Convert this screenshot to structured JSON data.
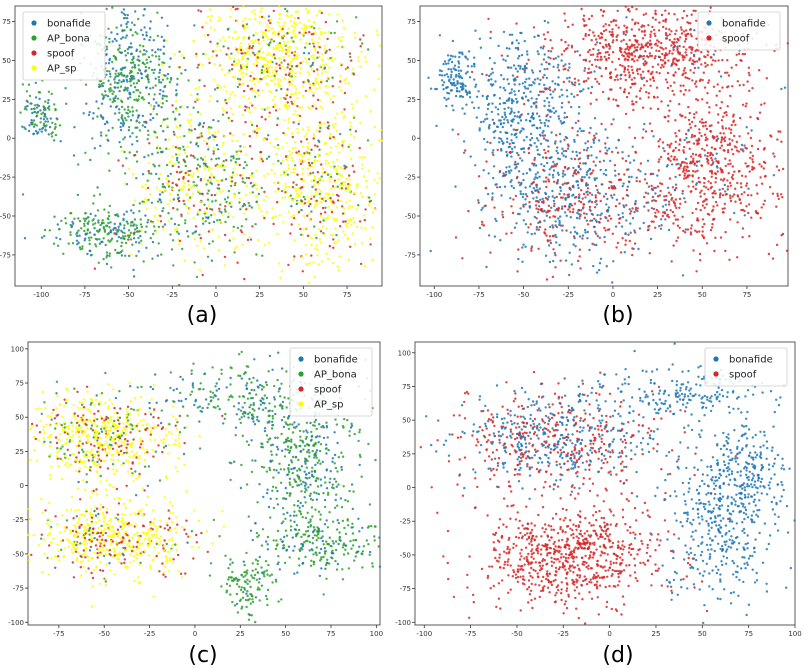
{
  "chart_data": [
    {
      "panel": "a",
      "caption": "(a)",
      "type": "scatter",
      "xlim": [
        -115,
        95
      ],
      "ylim": [
        -95,
        85
      ],
      "xticks": [
        -100,
        -75,
        -50,
        -25,
        0,
        25,
        50,
        75
      ],
      "yticks": [
        -75,
        -50,
        -25,
        0,
        25,
        50,
        75
      ],
      "legend_position": "top-left",
      "series": [
        {
          "name": "bonafide",
          "color": "#1f77b4"
        },
        {
          "name": "AP_bona",
          "color": "#2ca02c"
        },
        {
          "name": "spoof",
          "color": "#d62728"
        },
        {
          "name": "AP_sp",
          "color": "#ffff00"
        }
      ],
      "clusters": [
        {
          "mix": [
            0.45,
            0.55,
            0,
            0
          ],
          "cx": -50,
          "cy": 40,
          "sx": 13,
          "sy": 24,
          "n": 500
        },
        {
          "mix": [
            0.45,
            0.55,
            0,
            0
          ],
          "cx": -100,
          "cy": 15,
          "sx": 6,
          "sy": 9,
          "n": 110
        },
        {
          "mix": [
            0.35,
            0.65,
            0,
            0
          ],
          "cx": -60,
          "cy": -60,
          "sx": 16,
          "sy": 9,
          "n": 260
        },
        {
          "mix": [
            0.1,
            0.35,
            0.15,
            0.4
          ],
          "cx": -10,
          "cy": -25,
          "sx": 20,
          "sy": 25,
          "n": 550
        },
        {
          "mix": [
            0.02,
            0.1,
            0.18,
            0.7
          ],
          "cx": 35,
          "cy": 50,
          "sx": 25,
          "sy": 20,
          "n": 800
        },
        {
          "mix": [
            0.02,
            0.1,
            0.18,
            0.7
          ],
          "cx": 60,
          "cy": -30,
          "sx": 18,
          "sy": 25,
          "n": 600
        }
      ]
    },
    {
      "panel": "b",
      "caption": "(b)",
      "type": "scatter",
      "xlim": [
        -108,
        98
      ],
      "ylim": [
        -95,
        85
      ],
      "xticks": [
        -100,
        -75,
        -50,
        -25,
        0,
        25,
        50,
        75
      ],
      "yticks": [
        -75,
        -50,
        -25,
        0,
        25,
        50,
        75
      ],
      "legend_position": "top-right",
      "series": [
        {
          "name": "bonafide",
          "color": "#1f77b4"
        },
        {
          "name": "spoof",
          "color": "#d62728"
        }
      ],
      "clusters": [
        {
          "mix": [
            1,
            0
          ],
          "cx": -88,
          "cy": 38,
          "sx": 6,
          "sy": 10,
          "n": 120
        },
        {
          "mix": [
            0.95,
            0.05
          ],
          "cx": -50,
          "cy": 15,
          "sx": 16,
          "sy": 28,
          "n": 500
        },
        {
          "mix": [
            0.55,
            0.45
          ],
          "cx": -20,
          "cy": -40,
          "sx": 28,
          "sy": 22,
          "n": 700
        },
        {
          "mix": [
            0.05,
            0.95
          ],
          "cx": 20,
          "cy": 55,
          "sx": 28,
          "sy": 15,
          "n": 700
        },
        {
          "mix": [
            0.05,
            0.95
          ],
          "cx": 55,
          "cy": -20,
          "sx": 20,
          "sy": 25,
          "n": 600
        }
      ]
    },
    {
      "panel": "c",
      "caption": "(c)",
      "type": "scatter",
      "xlim": [
        -92,
        102
      ],
      "ylim": [
        -102,
        105
      ],
      "xticks": [
        -75,
        -50,
        -25,
        0,
        25,
        50,
        75,
        100
      ],
      "yticks": [
        -100,
        -75,
        -50,
        -25,
        0,
        25,
        50,
        75,
        100
      ],
      "legend_position": "top-right",
      "series": [
        {
          "name": "bonafide",
          "color": "#1f77b4"
        },
        {
          "name": "AP_bona",
          "color": "#2ca02c"
        },
        {
          "name": "spoof",
          "color": "#d62728"
        },
        {
          "name": "AP_sp",
          "color": "#ffff00"
        }
      ],
      "clusters": [
        {
          "mix": [
            0.03,
            0.12,
            0.2,
            0.65
          ],
          "cx": -50,
          "cy": 35,
          "sx": 20,
          "sy": 16,
          "n": 650
        },
        {
          "mix": [
            0.02,
            0.05,
            0.2,
            0.73
          ],
          "cx": -45,
          "cy": -38,
          "sx": 22,
          "sy": 14,
          "n": 600
        },
        {
          "mix": [
            0.35,
            0.65,
            0,
            0
          ],
          "cx": 60,
          "cy": 20,
          "sx": 15,
          "sy": 25,
          "n": 400
        },
        {
          "mix": [
            0.45,
            0.55,
            0,
            0
          ],
          "cx": 30,
          "cy": 65,
          "sx": 28,
          "sy": 12,
          "n": 250
        },
        {
          "mix": [
            0.2,
            0.8,
            0,
            0
          ],
          "cx": 70,
          "cy": -40,
          "sx": 20,
          "sy": 12,
          "n": 250
        },
        {
          "mix": [
            0.1,
            0.9,
            0,
            0
          ],
          "cx": 30,
          "cy": -72,
          "sx": 8,
          "sy": 10,
          "n": 120
        }
      ]
    },
    {
      "panel": "d",
      "caption": "(d)",
      "type": "scatter",
      "xlim": [
        -105,
        100
      ],
      "ylim": [
        -102,
        108
      ],
      "xticks": [
        -100,
        -75,
        -50,
        -25,
        0,
        25,
        50,
        75,
        100
      ],
      "yticks": [
        -100,
        -75,
        -50,
        -25,
        0,
        25,
        50,
        75,
        100
      ],
      "legend_position": "top-right",
      "series": [
        {
          "name": "bonafide",
          "color": "#1f77b4"
        },
        {
          "name": "spoof",
          "color": "#d62728"
        }
      ],
      "clusters": [
        {
          "mix": [
            0.5,
            0.5
          ],
          "cx": -30,
          "cy": 35,
          "sx": 30,
          "sy": 18,
          "n": 750
        },
        {
          "mix": [
            0,
            1
          ],
          "cx": -20,
          "cy": -50,
          "sx": 25,
          "sy": 18,
          "n": 750
        },
        {
          "mix": [
            1,
            0
          ],
          "cx": 60,
          "cy": -25,
          "sx": 15,
          "sy": 30,
          "n": 400
        },
        {
          "mix": [
            1,
            0
          ],
          "cx": 40,
          "cy": 70,
          "sx": 25,
          "sy": 10,
          "n": 180
        },
        {
          "mix": [
            1,
            0
          ],
          "cx": 75,
          "cy": 15,
          "sx": 10,
          "sy": 20,
          "n": 180
        }
      ]
    }
  ]
}
